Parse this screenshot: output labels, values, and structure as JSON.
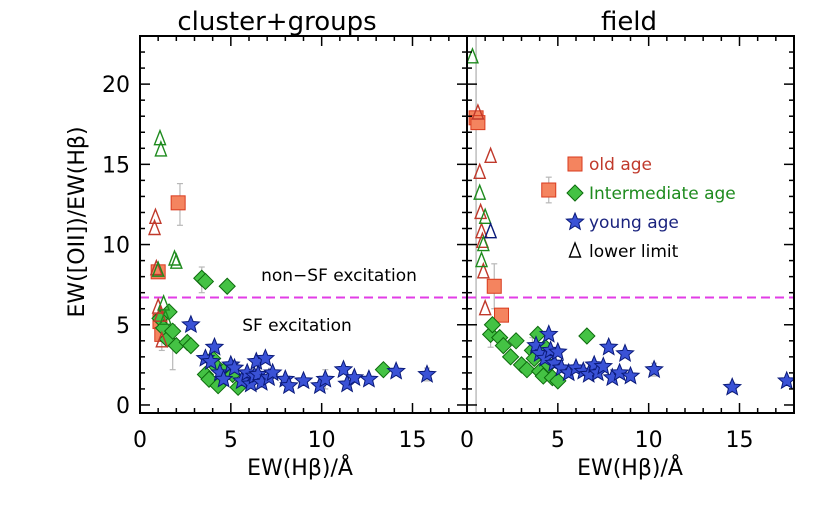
{
  "chart_data": [
    {
      "type": "scatter",
      "title": "cluster+groups",
      "xlabel": "EW(Hβ)/Å",
      "ylabel": "EW([OII])/EW(Hβ)",
      "xlim": [
        0,
        18
      ],
      "ylim": [
        -0.5,
        23
      ],
      "xticks": [
        0,
        5,
        10,
        15
      ],
      "yticks": [
        0,
        5,
        10,
        15,
        20
      ],
      "threshold_y": 6.7,
      "annotations": [
        {
          "text": "non−SF excitation",
          "x": 12.6,
          "y": 8.2
        },
        {
          "text": "SF excitation",
          "x": 9.5,
          "y": 4.9
        }
      ],
      "series": [
        {
          "name": "old age",
          "marker": "square",
          "color": "#d93a1e",
          "fill": "#f4845f",
          "points": [
            [
              1.0,
              8.3
            ],
            [
              1.1,
              5.2
            ],
            [
              1.2,
              4.4
            ],
            [
              2.1,
              12.6
            ]
          ],
          "errors": [
            [
              2.2,
              11.2,
              13.8
            ],
            [
              1.2,
              3.4,
              5.0
            ]
          ]
        },
        {
          "name": "Intermediate age",
          "marker": "diamond",
          "color": "#0d6b0d",
          "fill": "#44c244",
          "points": [
            [
              1.1,
              5.4
            ],
            [
              1.3,
              4.8
            ],
            [
              1.5,
              4.1
            ],
            [
              1.6,
              5.8
            ],
            [
              1.8,
              4.6
            ],
            [
              2.0,
              3.7
            ],
            [
              2.6,
              3.9
            ],
            [
              2.8,
              3.7
            ],
            [
              3.4,
              7.9
            ],
            [
              3.6,
              7.7
            ],
            [
              3.6,
              1.9
            ],
            [
              3.8,
              1.6
            ],
            [
              4.0,
              2.9
            ],
            [
              4.2,
              2.4
            ],
            [
              4.3,
              1.2
            ],
            [
              4.6,
              2.1
            ],
            [
              4.8,
              7.4
            ],
            [
              5.1,
              1.9
            ],
            [
              5.4,
              1.1
            ],
            [
              13.4,
              2.2
            ]
          ],
          "errors": [
            [
              1.8,
              2.2,
              5.0
            ],
            [
              3.4,
              7.0,
              8.6
            ]
          ]
        },
        {
          "name": "young age",
          "marker": "star",
          "color": "#0a1a7a",
          "fill": "#3a52d6",
          "points": [
            [
              2.8,
              5.0
            ],
            [
              3.6,
              2.9
            ],
            [
              3.9,
              2.7
            ],
            [
              4.1,
              3.6
            ],
            [
              4.4,
              2.0
            ],
            [
              4.6,
              1.6
            ],
            [
              5.0,
              2.5
            ],
            [
              5.2,
              2.3
            ],
            [
              5.6,
              1.5
            ],
            [
              5.9,
              2.0
            ],
            [
              6.1,
              1.3
            ],
            [
              6.3,
              1.8
            ],
            [
              6.4,
              2.7
            ],
            [
              6.5,
              1.9
            ],
            [
              6.7,
              1.4
            ],
            [
              6.9,
              2.9
            ],
            [
              7.1,
              1.7
            ],
            [
              7.3,
              2.0
            ],
            [
              8.0,
              1.6
            ],
            [
              8.2,
              1.2
            ],
            [
              9.0,
              1.5
            ],
            [
              9.9,
              1.2
            ],
            [
              10.2,
              1.6
            ],
            [
              11.2,
              2.2
            ],
            [
              11.4,
              1.3
            ],
            [
              11.8,
              1.7
            ],
            [
              12.6,
              1.6
            ],
            [
              14.1,
              2.1
            ],
            [
              15.8,
              1.9
            ]
          ],
          "errors": [
            [
              10.2,
              1.0,
              2.2
            ],
            [
              15.8,
              1.5,
              2.3
            ]
          ]
        },
        {
          "name": "lower limit",
          "marker": "triangle",
          "points": [
            {
              "x": 0.8,
              "y": 11.0,
              "color": "#c0392b"
            },
            {
              "x": 0.85,
              "y": 11.7,
              "color": "#c0392b"
            },
            {
              "x": 0.9,
              "y": 8.5,
              "color": "#c0392b"
            },
            {
              "x": 1.0,
              "y": 6.1,
              "color": "#c0392b"
            },
            {
              "x": 1.1,
              "y": 5.6,
              "color": "#c0392b"
            },
            {
              "x": 1.2,
              "y": 4.0,
              "color": "#c0392b"
            },
            {
              "x": 1.1,
              "y": 16.6,
              "color": "#1e8b1e"
            },
            {
              "x": 1.15,
              "y": 15.9,
              "color": "#1e8b1e"
            },
            {
              "x": 1.0,
              "y": 8.4,
              "color": "#1e8b1e"
            },
            {
              "x": 1.9,
              "y": 9.1,
              "color": "#1e8b1e"
            },
            {
              "x": 2.0,
              "y": 8.9,
              "color": "#1e8b1e"
            },
            {
              "x": 1.3,
              "y": 6.3,
              "color": "#1e8b1e"
            },
            {
              "x": 1.4,
              "y": 5.4,
              "color": "#1e8b1e"
            }
          ]
        }
      ]
    },
    {
      "type": "scatter",
      "title": "field",
      "xlabel": "EW(Hβ)/Å",
      "xlim": [
        0,
        18
      ],
      "ylim": [
        -0.5,
        23
      ],
      "xticks": [
        0,
        5,
        10,
        15
      ],
      "threshold_y": 6.7,
      "vertical_line_x": 0.5,
      "legend_placement": "top-right",
      "series": [
        {
          "name": "old age",
          "marker": "square",
          "color": "#d93a1e",
          "fill": "#f4845f",
          "points": [
            [
              0.5,
              17.9
            ],
            [
              0.6,
              17.6
            ],
            [
              1.5,
              7.4
            ],
            [
              1.9,
              5.6
            ],
            [
              4.5,
              13.4
            ]
          ],
          "errors": [
            [
              4.5,
              12.6,
              14.2
            ],
            [
              1.5,
              6.0,
              8.8
            ]
          ]
        },
        {
          "name": "Intermediate age",
          "marker": "diamond",
          "color": "#0d6b0d",
          "fill": "#44c244",
          "points": [
            [
              1.3,
              4.4
            ],
            [
              1.4,
              5.0
            ],
            [
              1.8,
              4.2
            ],
            [
              2.0,
              3.7
            ],
            [
              2.4,
              3.0
            ],
            [
              2.7,
              4.0
            ],
            [
              3.0,
              2.5
            ],
            [
              3.3,
              2.2
            ],
            [
              3.6,
              3.4
            ],
            [
              3.7,
              2.9
            ],
            [
              3.9,
              4.4
            ],
            [
              4.0,
              2.1
            ],
            [
              4.2,
              1.8
            ],
            [
              4.3,
              3.6
            ],
            [
              4.5,
              2.5
            ],
            [
              4.7,
              1.7
            ],
            [
              5.0,
              1.5
            ],
            [
              6.6,
              4.3
            ]
          ],
          "errors": [
            [
              3.6,
              2.6,
              4.2
            ],
            [
              1.3,
              3.6,
              5.2
            ]
          ]
        },
        {
          "name": "young age",
          "marker": "star",
          "color": "#0a1a7a",
          "fill": "#3a52d6",
          "points": [
            [
              3.8,
              3.7
            ],
            [
              4.0,
              3.2
            ],
            [
              4.3,
              2.9
            ],
            [
              4.5,
              4.4
            ],
            [
              4.6,
              3.4
            ],
            [
              4.8,
              2.6
            ],
            [
              5.0,
              3.3
            ],
            [
              5.2,
              2.3
            ],
            [
              5.6,
              2.0
            ],
            [
              6.0,
              2.3
            ],
            [
              6.4,
              2.1
            ],
            [
              6.7,
              1.9
            ],
            [
              7.0,
              2.5
            ],
            [
              7.2,
              2.0
            ],
            [
              7.5,
              2.4
            ],
            [
              7.8,
              3.6
            ],
            [
              8.0,
              1.7
            ],
            [
              8.4,
              2.0
            ],
            [
              8.7,
              3.2
            ],
            [
              9.0,
              1.8
            ],
            [
              10.3,
              2.2
            ],
            [
              14.6,
              1.1
            ],
            [
              17.6,
              1.5
            ]
          ],
          "errors": [
            [
              14.6,
              0.8,
              1.4
            ],
            [
              10.3,
              1.8,
              2.6
            ]
          ]
        },
        {
          "name": "lower limit",
          "marker": "triangle",
          "points": [
            {
              "x": 0.6,
              "y": 18.2,
              "color": "#c0392b"
            },
            {
              "x": 0.7,
              "y": 14.5,
              "color": "#c0392b"
            },
            {
              "x": 0.75,
              "y": 12.0,
              "color": "#c0392b"
            },
            {
              "x": 0.8,
              "y": 10.8,
              "color": "#c0392b"
            },
            {
              "x": 0.85,
              "y": 10.2,
              "color": "#c0392b"
            },
            {
              "x": 1.3,
              "y": 15.5,
              "color": "#c0392b"
            },
            {
              "x": 0.9,
              "y": 8.3,
              "color": "#c0392b"
            },
            {
              "x": 1.0,
              "y": 6.0,
              "color": "#c0392b"
            },
            {
              "x": 0.3,
              "y": 21.7,
              "color": "#1e8b1e"
            },
            {
              "x": 0.7,
              "y": 13.2,
              "color": "#1e8b1e"
            },
            {
              "x": 1.0,
              "y": 11.7,
              "color": "#1e8b1e"
            },
            {
              "x": 0.9,
              "y": 10.0,
              "color": "#1e8b1e"
            },
            {
              "x": 0.8,
              "y": 9.0,
              "color": "#1e8b1e"
            },
            {
              "x": 1.3,
              "y": 10.8,
              "color": "#0a1a7a"
            }
          ]
        }
      ]
    }
  ],
  "legend": [
    {
      "label": "old age",
      "marker": "square",
      "color": "#c0392b"
    },
    {
      "label": "Intermediate age",
      "marker": "diamond",
      "color": "#1e8b1e"
    },
    {
      "label": "young age",
      "marker": "star",
      "color": "#1a237e"
    },
    {
      "label": "lower limit",
      "marker": "triangle",
      "color": "#000000"
    }
  ]
}
